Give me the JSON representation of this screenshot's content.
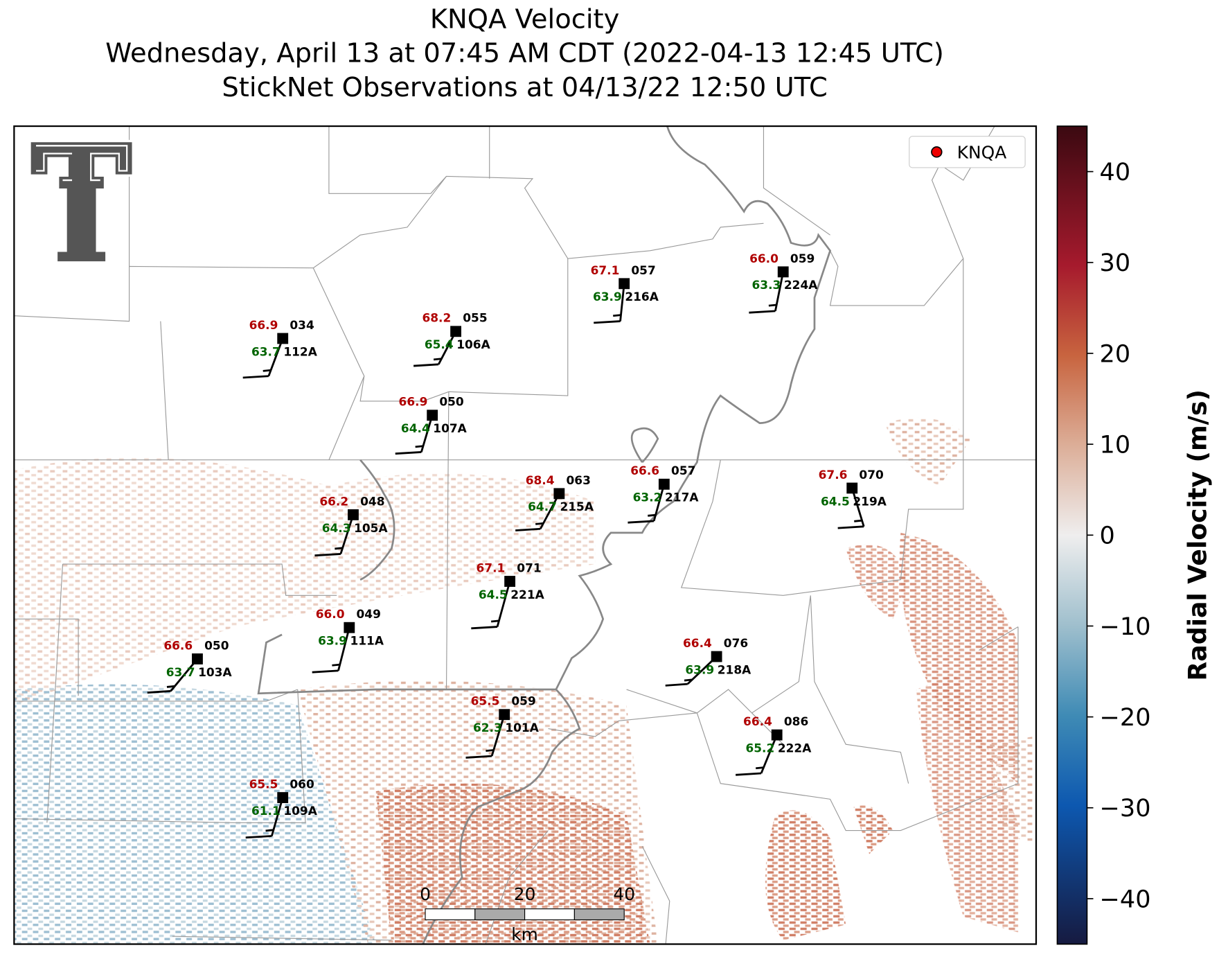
{
  "header": {
    "title": [
      "KNQA Velocity",
      "Wednesday, April 13 at 07:45 AM CDT (2022-04-13 12:45 UTC)",
      "StickNet Observations at 04/13/22 12:50 UTC"
    ]
  },
  "legend": {
    "label": "KNQA"
  },
  "colorbar": {
    "label": "Radial Velocity (m/s)",
    "lim": [
      -45,
      45
    ],
    "ticks": [
      40,
      30,
      20,
      10,
      0,
      {
        "value": -10,
        "label": "−10"
      },
      {
        "value": -20,
        "label": "−20"
      },
      {
        "value": -30,
        "label": "−30"
      },
      {
        "value": -40,
        "label": "−40"
      }
    ]
  },
  "scale_bar": {
    "ticks": [
      0,
      20,
      40
    ],
    "unit": "km"
  },
  "stations": [
    {
      "id": "112A",
      "temp": 66.9,
      "dewpoint": 63.7,
      "code": "034"
    },
    {
      "id": "106A",
      "temp": 68.2,
      "dewpoint": 65.4,
      "code": "055"
    },
    {
      "id": "216A",
      "temp": 67.1,
      "dewpoint": 63.9,
      "code": "057"
    },
    {
      "id": "224A",
      "temp": 66.0,
      "dewpoint": 63.3,
      "code": "059"
    },
    {
      "id": "107A",
      "temp": 66.9,
      "dewpoint": 64.4,
      "code": "050"
    },
    {
      "id": "217A",
      "temp": 66.6,
      "dewpoint": 63.2,
      "code": "057"
    },
    {
      "id": "215A",
      "temp": 68.4,
      "dewpoint": 64.7,
      "code": "063"
    },
    {
      "id": "219A",
      "temp": 67.6,
      "dewpoint": 64.5,
      "code": "070"
    },
    {
      "id": "105A",
      "temp": 66.2,
      "dewpoint": 64.3,
      "code": "048"
    },
    {
      "id": "221A",
      "temp": 67.1,
      "dewpoint": 64.5,
      "code": "071"
    },
    {
      "id": "111A",
      "temp": 66.0,
      "dewpoint": 63.9,
      "code": "049"
    },
    {
      "id": "103A",
      "temp": 66.6,
      "dewpoint": 63.7,
      "code": "050"
    },
    {
      "id": "218A",
      "temp": 66.4,
      "dewpoint": 63.9,
      "code": "076"
    },
    {
      "id": "101A",
      "temp": 65.5,
      "dewpoint": 62.3,
      "code": "059"
    },
    {
      "id": "222A",
      "temp": 66.4,
      "dewpoint": 65.2,
      "code": "086"
    },
    {
      "id": "109A",
      "temp": 65.5,
      "dewpoint": 61.1,
      "code": "060"
    }
  ]
}
